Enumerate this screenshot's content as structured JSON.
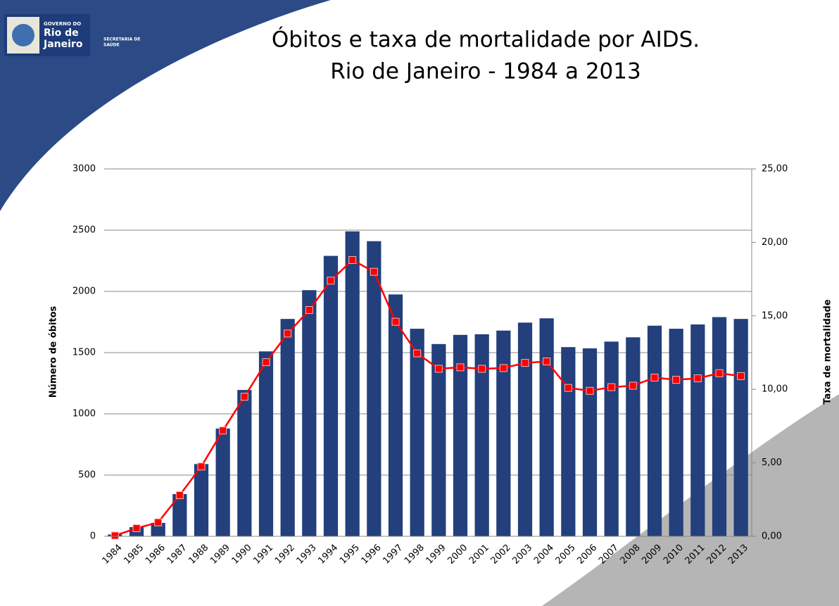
{
  "logo": {
    "lines": [
      "GOVERNO DO",
      "Rio de",
      "Janeiro"
    ],
    "dept": [
      "SECRETARIA DE",
      "SAÚDE"
    ]
  },
  "chart_data": {
    "type": "bar",
    "title": "Óbitos e taxa de mortalidade por AIDS.",
    "subtitle": "Rio de Janeiro - 1984 a 2013",
    "ylabel": "Número de óbitos",
    "y2label": "Taxa de mortalidade",
    "categories": [
      "1984",
      "1985",
      "1986",
      "1987",
      "1988",
      "1989",
      "1990",
      "1991",
      "1992",
      "1993",
      "1994",
      "1995",
      "1996",
      "1997",
      "1998",
      "1999",
      "2000",
      "2001",
      "2002",
      "2003",
      "2004",
      "2005",
      "2006",
      "2007",
      "2008",
      "2009",
      "2010",
      "2011",
      "2012",
      "2013"
    ],
    "series": [
      {
        "type": "bar",
        "color": "#233f7c",
        "values": [
          15,
          75,
          110,
          345,
          590,
          880,
          1195,
          1510,
          1775,
          2010,
          2290,
          2490,
          2410,
          1975,
          1695,
          1570,
          1645,
          1650,
          1680,
          1745,
          1780,
          1545,
          1535,
          1590,
          1625,
          1720,
          1695,
          1730,
          1790,
          1775
        ]
      },
      {
        "type": "line",
        "axis": "y2",
        "color": "#ff0000",
        "values": [
          0.05,
          0.55,
          0.95,
          2.8,
          4.75,
          7.2,
          9.5,
          11.85,
          13.8,
          15.4,
          17.4,
          18.8,
          18.0,
          14.6,
          12.45,
          11.4,
          11.5,
          11.4,
          11.45,
          11.8,
          11.9,
          10.1,
          9.9,
          10.15,
          10.25,
          10.8,
          10.65,
          10.75,
          11.1,
          10.9
        ]
      }
    ],
    "ylim": [
      0,
      3000
    ],
    "yticks": [
      0,
      500,
      1000,
      1500,
      2000,
      2500,
      3000
    ],
    "y2lim": [
      0,
      25
    ],
    "y2ticks": [
      {
        "value": 0,
        "label": "0,00"
      },
      {
        "value": 5,
        "label": "5,00"
      },
      {
        "value": 10,
        "label": "10,00"
      },
      {
        "value": 15,
        "label": "15,00"
      },
      {
        "value": 20,
        "label": "20,00"
      },
      {
        "value": 25,
        "label": "25,00"
      }
    ],
    "grid": true
  }
}
